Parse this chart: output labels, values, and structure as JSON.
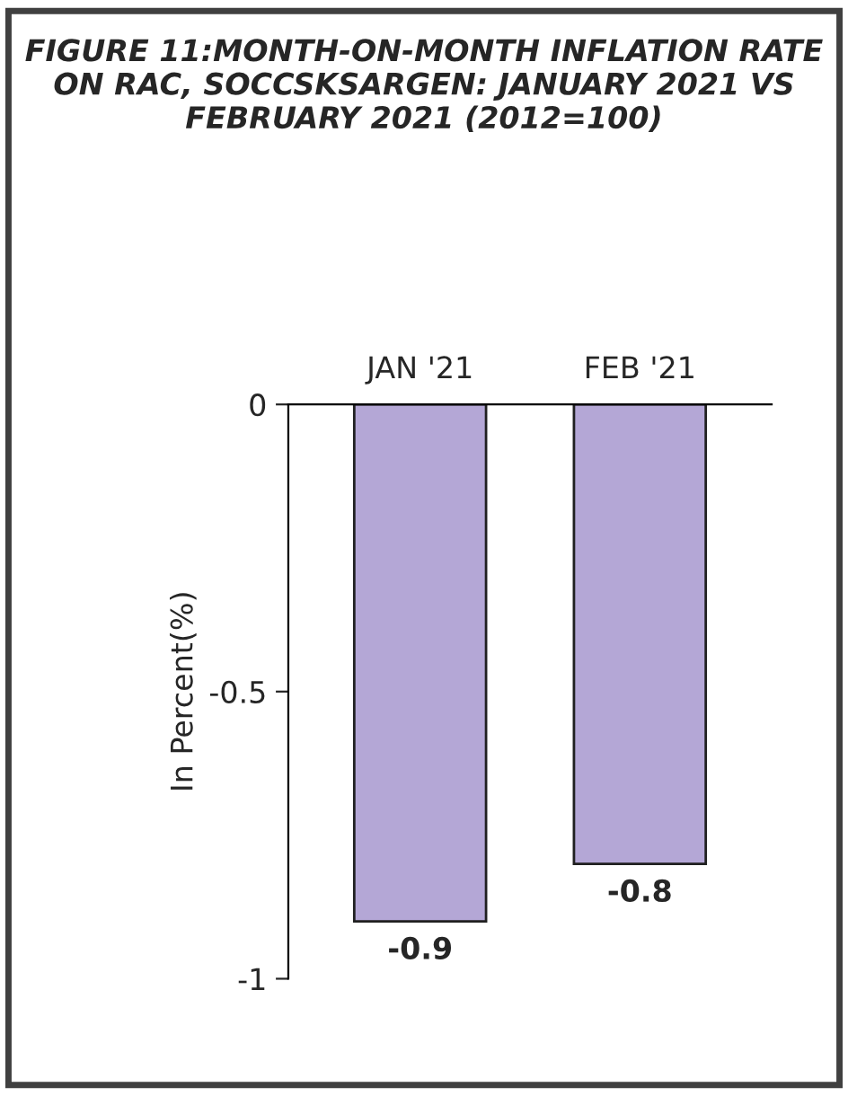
{
  "chart_data": {
    "type": "bar",
    "title": "FIGURE 11:MONTH-ON-MONTH INFLATION RATE ON RAC, SOCCSKSARGEN: JANUARY 2021 VS FEBRUARY 2021 (2012=100)",
    "ylabel": "In Percent(%)",
    "categories": [
      "JAN '21",
      "FEB '21"
    ],
    "series": [
      {
        "color": "#b4a7d6",
        "values": [
          -0.9,
          -0.8
        ]
      }
    ],
    "ylim": [
      -1,
      0
    ],
    "yticks": [
      0,
      -0.5,
      -1
    ],
    "data_labels": true,
    "grid": false,
    "legend": false
  }
}
